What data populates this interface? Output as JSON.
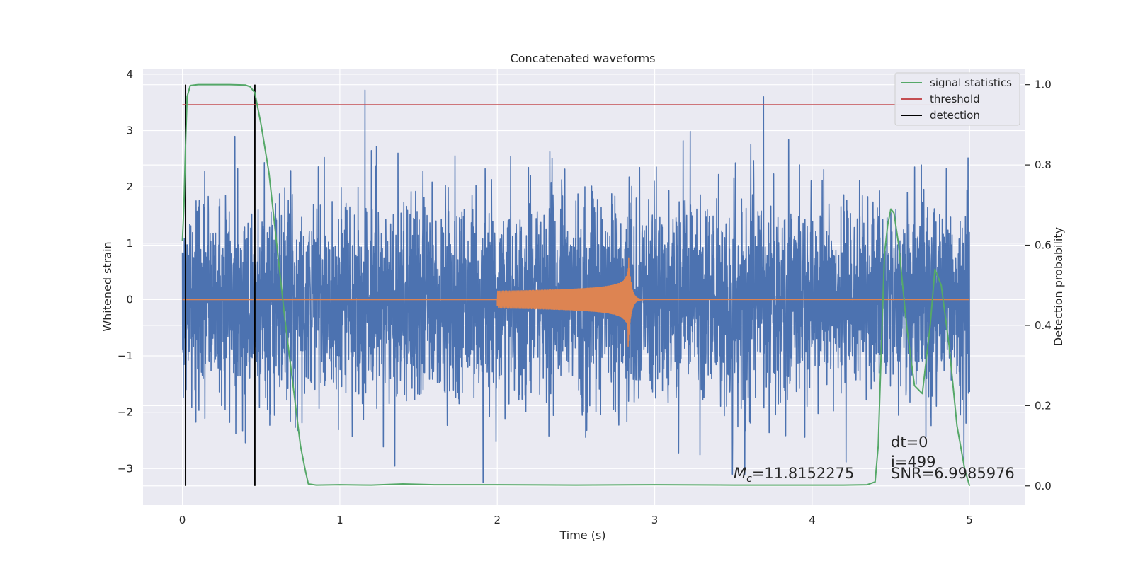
{
  "chart_data": {
    "type": "line",
    "title": "Concatenated waveforms",
    "xlabel": "Time (s)",
    "ylabel": "Whitened strain",
    "ylabel_right": "Detection probability",
    "xlim": [
      -0.25,
      5.35
    ],
    "ylim": [
      -3.65,
      4.1
    ],
    "ylim_right": [
      -0.048,
      1.04
    ],
    "x_ticks": [
      0,
      1,
      2,
      3,
      4,
      5
    ],
    "y_ticks": [
      -3,
      -2,
      -1,
      0,
      1,
      2,
      3,
      4
    ],
    "y_right_ticks": [
      0.0,
      0.2,
      0.4,
      0.6,
      0.8,
      1.0
    ],
    "grid": true,
    "legend_position": "top-right",
    "series": [
      {
        "name": "",
        "kind": "noise",
        "axis": "left",
        "color": "#4c72b0",
        "description_values": {
          "t_start": 0,
          "t_end": 5,
          "typical_range": [
            -2.3,
            2.3
          ],
          "max": 3.72,
          "min": -3.25
        }
      },
      {
        "name": "",
        "kind": "chirp",
        "axis": "left",
        "color": "#dd8452",
        "description_values": {
          "t_start": 2.0,
          "t_peak": 2.83,
          "t_end": 5,
          "start_amplitude": 0.15,
          "peak_amplitude": 1.0
        }
      },
      {
        "name": "signal statistics",
        "axis": "right",
        "color": "#55a868",
        "x": [
          0.0,
          0.01,
          0.02,
          0.03,
          0.05,
          0.1,
          0.2,
          0.3,
          0.4,
          0.43,
          0.46,
          0.5,
          0.55,
          0.6,
          0.65,
          0.7,
          0.75,
          0.78,
          0.8,
          0.85,
          1.0,
          1.2,
          1.4,
          1.6,
          2.0,
          2.5,
          3.0,
          3.5,
          4.0,
          4.2,
          4.35,
          4.4,
          4.42,
          4.44,
          4.46,
          4.48,
          4.5,
          4.52,
          4.55,
          4.6,
          4.65,
          4.7,
          4.75,
          4.78,
          4.82,
          4.87,
          4.92,
          4.97,
          5.0
        ],
        "y": [
          0.61,
          0.7,
          0.85,
          0.97,
          0.998,
          1.0,
          1.0,
          1.0,
          0.999,
          0.995,
          0.98,
          0.9,
          0.78,
          0.6,
          0.42,
          0.26,
          0.1,
          0.04,
          0.005,
          0.002,
          0.003,
          0.002,
          0.005,
          0.003,
          0.003,
          0.002,
          0.003,
          0.002,
          0.002,
          0.002,
          0.003,
          0.01,
          0.1,
          0.35,
          0.58,
          0.65,
          0.69,
          0.68,
          0.6,
          0.4,
          0.25,
          0.23,
          0.4,
          0.54,
          0.5,
          0.35,
          0.15,
          0.04,
          0.0
        ]
      },
      {
        "name": "threshold",
        "axis": "right",
        "color": "#c44e52",
        "x": [
          0,
          5
        ],
        "y": [
          0.95,
          0.95
        ]
      },
      {
        "name": "detection",
        "axis": "right",
        "color": "#000000",
        "x_positions": [
          0.02,
          0.46
        ],
        "y_range": [
          0.0,
          1.0
        ]
      }
    ],
    "annotations": {
      "mc_symbol": "M",
      "mc_sub": "c",
      "mc_value": "=11.8152275",
      "dt": "dt=0",
      "i": "i=499",
      "snr": "SNR=6.9985976"
    }
  }
}
